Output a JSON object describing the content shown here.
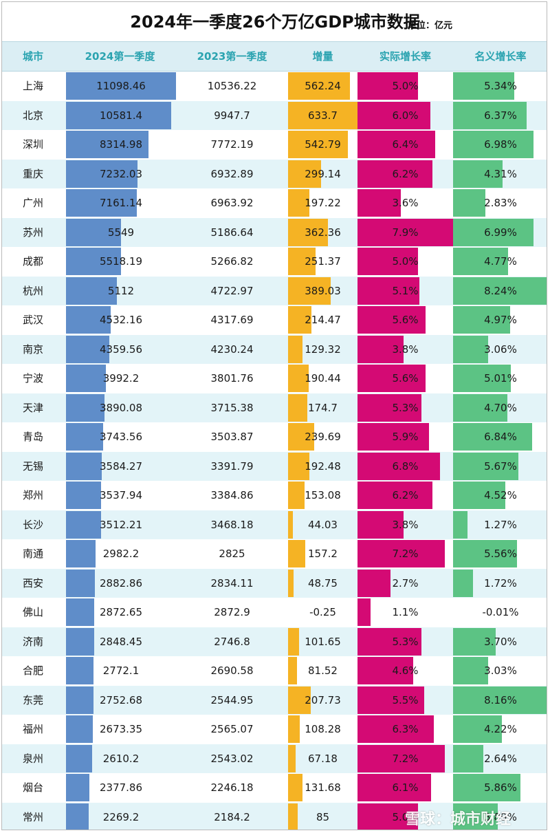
{
  "title": "2024年一季度26个万亿GDP城市数据",
  "unit": "单位：亿元",
  "watermark": "雪球：城市财经",
  "headers": [
    "城市",
    "2024第一季度",
    "2023第一季度",
    "增量",
    "实际增长率",
    "名义增长率"
  ],
  "colors": {
    "gdp2024": "#5f8dc9",
    "increment": "#f5b324",
    "real": "#d40a74",
    "nominal": "#5cc384",
    "header_text": "#2aa3b0"
  },
  "chart_data": {
    "type": "table",
    "title": "2024年一季度26个万亿GDP城市数据",
    "columns": [
      "城市",
      "2024第一季度",
      "2023第一季度",
      "增量",
      "实际增长率",
      "名义增长率"
    ],
    "rows": [
      {
        "city": "上海",
        "gdp2024": "11098.46",
        "gdp2023": "10536.22",
        "inc": "562.24",
        "real": "5.0%",
        "nominal": "5.34%"
      },
      {
        "city": "北京",
        "gdp2024": "10581.4",
        "gdp2023": "9947.7",
        "inc": "633.7",
        "real": "6.0%",
        "nominal": "6.37%"
      },
      {
        "city": "深圳",
        "gdp2024": "8314.98",
        "gdp2023": "7772.19",
        "inc": "542.79",
        "real": "6.4%",
        "nominal": "6.98%"
      },
      {
        "city": "重庆",
        "gdp2024": "7232.03",
        "gdp2023": "6932.89",
        "inc": "299.14",
        "real": "6.2%",
        "nominal": "4.31%"
      },
      {
        "city": "广州",
        "gdp2024": "7161.14",
        "gdp2023": "6963.92",
        "inc": "197.22",
        "real": "3.6%",
        "nominal": "2.83%"
      },
      {
        "city": "苏州",
        "gdp2024": "5549",
        "gdp2023": "5186.64",
        "inc": "362.36",
        "real": "7.9%",
        "nominal": "6.99%"
      },
      {
        "city": "成都",
        "gdp2024": "5518.19",
        "gdp2023": "5266.82",
        "inc": "251.37",
        "real": "5.0%",
        "nominal": "4.77%"
      },
      {
        "city": "杭州",
        "gdp2024": "5112",
        "gdp2023": "4722.97",
        "inc": "389.03",
        "real": "5.1%",
        "nominal": "8.24%"
      },
      {
        "city": "武汉",
        "gdp2024": "4532.16",
        "gdp2023": "4317.69",
        "inc": "214.47",
        "real": "5.6%",
        "nominal": "4.97%"
      },
      {
        "city": "南京",
        "gdp2024": "4359.56",
        "gdp2023": "4230.24",
        "inc": "129.32",
        "real": "3.8%",
        "nominal": "3.06%"
      },
      {
        "city": "宁波",
        "gdp2024": "3992.2",
        "gdp2023": "3801.76",
        "inc": "190.44",
        "real": "5.6%",
        "nominal": "5.01%"
      },
      {
        "city": "天津",
        "gdp2024": "3890.08",
        "gdp2023": "3715.38",
        "inc": "174.7",
        "real": "5.3%",
        "nominal": "4.70%"
      },
      {
        "city": "青岛",
        "gdp2024": "3743.56",
        "gdp2023": "3503.87",
        "inc": "239.69",
        "real": "5.9%",
        "nominal": "6.84%"
      },
      {
        "city": "无锡",
        "gdp2024": "3584.27",
        "gdp2023": "3391.79",
        "inc": "192.48",
        "real": "6.8%",
        "nominal": "5.67%"
      },
      {
        "city": "郑州",
        "gdp2024": "3537.94",
        "gdp2023": "3384.86",
        "inc": "153.08",
        "real": "6.2%",
        "nominal": "4.52%"
      },
      {
        "city": "长沙",
        "gdp2024": "3512.21",
        "gdp2023": "3468.18",
        "inc": "44.03",
        "real": "3.8%",
        "nominal": "1.27%"
      },
      {
        "city": "南通",
        "gdp2024": "2982.2",
        "gdp2023": "2825",
        "inc": "157.2",
        "real": "7.2%",
        "nominal": "5.56%"
      },
      {
        "city": "西安",
        "gdp2024": "2882.86",
        "gdp2023": "2834.11",
        "inc": "48.75",
        "real": "2.7%",
        "nominal": "1.72%"
      },
      {
        "city": "佛山",
        "gdp2024": "2872.65",
        "gdp2023": "2872.9",
        "inc": "-0.25",
        "real": "1.1%",
        "nominal": "-0.01%"
      },
      {
        "city": "济南",
        "gdp2024": "2848.45",
        "gdp2023": "2746.8",
        "inc": "101.65",
        "real": "5.3%",
        "nominal": "3.70%"
      },
      {
        "city": "合肥",
        "gdp2024": "2772.1",
        "gdp2023": "2690.58",
        "inc": "81.52",
        "real": "4.6%",
        "nominal": "3.03%"
      },
      {
        "city": "东莞",
        "gdp2024": "2752.68",
        "gdp2023": "2544.95",
        "inc": "207.73",
        "real": "5.5%",
        "nominal": "8.16%"
      },
      {
        "city": "福州",
        "gdp2024": "2673.35",
        "gdp2023": "2565.07",
        "inc": "108.28",
        "real": "6.3%",
        "nominal": "4.22%"
      },
      {
        "city": "泉州",
        "gdp2024": "2610.2",
        "gdp2023": "2543.02",
        "inc": "67.18",
        "real": "7.2%",
        "nominal": "2.64%"
      },
      {
        "city": "烟台",
        "gdp2024": "2377.86",
        "gdp2023": "2246.18",
        "inc": "131.68",
        "real": "6.1%",
        "nominal": "5.86%"
      },
      {
        "city": "常州",
        "gdp2024": "2269.2",
        "gdp2023": "2184.2",
        "inc": "85",
        "real": "5.0%",
        "nominal": "3.89%"
      }
    ]
  }
}
